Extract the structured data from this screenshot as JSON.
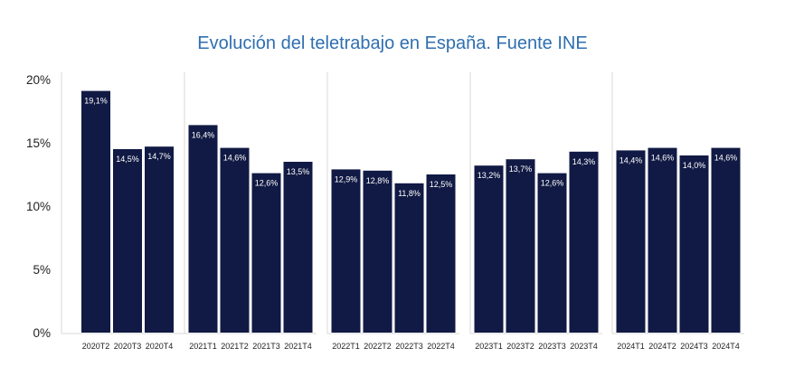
{
  "chart_data": {
    "type": "bar",
    "title": "Evolución del teletrabajo en España. Fuente INE",
    "xlabel": "",
    "ylabel": "",
    "ylim": [
      0,
      20
    ],
    "yticks": [
      "0%",
      "5%",
      "10%",
      "15%",
      "20%"
    ],
    "grid": "none",
    "bar_color": "#111a44",
    "title_color": "#2f6fb0",
    "groups": [
      {
        "categories": [
          "2020T2",
          "2020T3",
          "2020T4"
        ],
        "values": [
          19.1,
          14.5,
          14.7
        ],
        "labels": [
          "19,1%",
          "14,5%",
          "14,7%"
        ]
      },
      {
        "categories": [
          "2021T1",
          "2021T2",
          "2021T3",
          "2021T4"
        ],
        "values": [
          16.4,
          14.6,
          12.6,
          13.5
        ],
        "labels": [
          "16,4%",
          "14,6%",
          "12,6%",
          "13,5%"
        ]
      },
      {
        "categories": [
          "2022T1",
          "2022T2",
          "2022T3",
          "2022T4"
        ],
        "values": [
          12.9,
          12.8,
          11.8,
          12.5
        ],
        "labels": [
          "12,9%",
          "12,8%",
          "11,8%",
          "12,5%"
        ]
      },
      {
        "categories": [
          "2023T1",
          "2023T2",
          "2023T3",
          "2023T4"
        ],
        "values": [
          13.2,
          13.7,
          12.6,
          14.3
        ],
        "labels": [
          "13,2%",
          "13,7%",
          "12,6%",
          "14,3%"
        ]
      },
      {
        "categories": [
          "2024T1",
          "2024T2",
          "2024T3",
          "2024T4"
        ],
        "values": [
          14.4,
          14.6,
          14.0,
          14.6
        ],
        "labels": [
          "14,4%",
          "14,6%",
          "14,0%",
          "14,6%"
        ]
      }
    ]
  }
}
